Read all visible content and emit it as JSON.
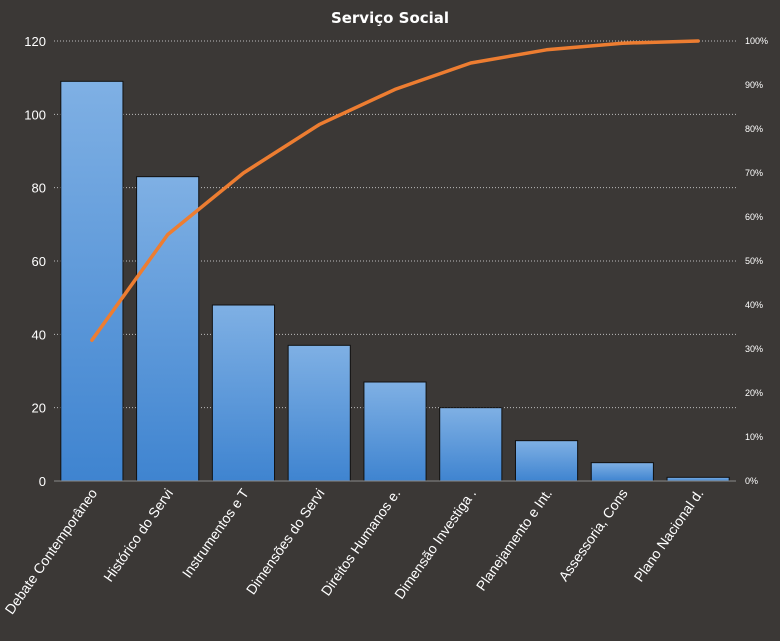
{
  "chart_data": {
    "type": "bar",
    "title": "Serviço Social",
    "categories": [
      "Debate Contemporâneo",
      "Histórico do Servi",
      "Instrumentos e T",
      "Dimensões do Servi",
      "Direitos Humanos e.",
      "Dimensão Investiga .",
      "Planejamento e Int.",
      "Assessoria, Cons",
      "Plano Nacional d."
    ],
    "series": [
      {
        "type": "bar",
        "axis": "left",
        "values": [
          109,
          83,
          48,
          37,
          27,
          20,
          11,
          5,
          1
        ]
      },
      {
        "type": "line",
        "axis": "right",
        "values": [
          0.32,
          0.56,
          0.7,
          0.81,
          0.89,
          0.95,
          0.98,
          0.995,
          1.0
        ]
      }
    ],
    "y_left": {
      "ylim": [
        0,
        120
      ],
      "ticks": [
        "0",
        "20",
        "40",
        "60",
        "80",
        "100",
        "120"
      ]
    },
    "y_right": {
      "ylim": [
        0,
        1
      ],
      "ticks": [
        "0%",
        "10%",
        "20%",
        "30%",
        "40%",
        "50%",
        "60%",
        "70%",
        "80%",
        "90%",
        "100%"
      ]
    },
    "grid": true,
    "legend": "none",
    "colors": {
      "background": "#3b3836",
      "bar_top": "#7fb0e4",
      "bar_bottom": "#3f84d0",
      "line": "#ed7d31",
      "grid": "#bdbdbd"
    }
  }
}
